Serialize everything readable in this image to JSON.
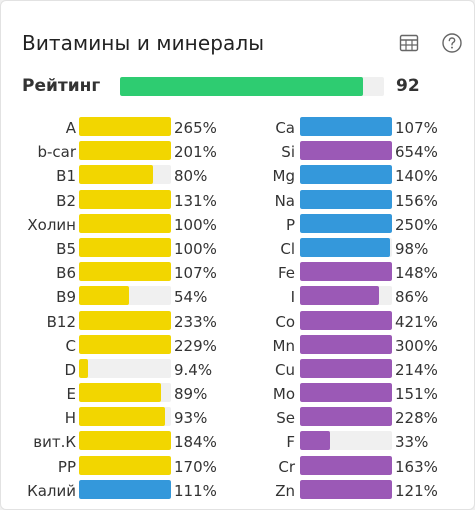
{
  "header": {
    "title": "Витамины и минералы",
    "table_icon": "table-icon",
    "help_icon": "question-circle-icon"
  },
  "rating": {
    "label": "Рейтинг",
    "value": "92",
    "fill_percent": 92,
    "color": "#2ecc71"
  },
  "colors": {
    "vitamin": "#f2d600",
    "mineral_blue": "#3498db",
    "mineral_purple": "#9b59b6",
    "track": "#f0f0f0"
  },
  "left_items": [
    {
      "label": "A",
      "value": "265%",
      "fill": 100,
      "color": "vitamin"
    },
    {
      "label": "b-car",
      "value": "201%",
      "fill": 100,
      "color": "vitamin"
    },
    {
      "label": "B1",
      "value": "80%",
      "fill": 80,
      "color": "vitamin"
    },
    {
      "label": "B2",
      "value": "131%",
      "fill": 100,
      "color": "vitamin"
    },
    {
      "label": "Холин",
      "value": "100%",
      "fill": 100,
      "color": "vitamin"
    },
    {
      "label": "B5",
      "value": "100%",
      "fill": 100,
      "color": "vitamin"
    },
    {
      "label": "B6",
      "value": "107%",
      "fill": 100,
      "color": "vitamin"
    },
    {
      "label": "B9",
      "value": "54%",
      "fill": 54,
      "color": "vitamin"
    },
    {
      "label": "B12",
      "value": "233%",
      "fill": 100,
      "color": "vitamin"
    },
    {
      "label": "C",
      "value": "229%",
      "fill": 100,
      "color": "vitamin"
    },
    {
      "label": "D",
      "value": "9.4%",
      "fill": 9.4,
      "color": "vitamin"
    },
    {
      "label": "E",
      "value": "89%",
      "fill": 89,
      "color": "vitamin"
    },
    {
      "label": "H",
      "value": "93%",
      "fill": 93,
      "color": "vitamin"
    },
    {
      "label": "вит.К",
      "value": "184%",
      "fill": 100,
      "color": "vitamin"
    },
    {
      "label": "PP",
      "value": "170%",
      "fill": 100,
      "color": "vitamin"
    },
    {
      "label": "Калий",
      "value": "111%",
      "fill": 100,
      "color": "mineral_blue"
    }
  ],
  "right_items": [
    {
      "label": "Ca",
      "value": "107%",
      "fill": 100,
      "color": "mineral_blue"
    },
    {
      "label": "Si",
      "value": "654%",
      "fill": 100,
      "color": "mineral_purple"
    },
    {
      "label": "Mg",
      "value": "140%",
      "fill": 100,
      "color": "mineral_blue"
    },
    {
      "label": "Na",
      "value": "156%",
      "fill": 100,
      "color": "mineral_blue"
    },
    {
      "label": "P",
      "value": "250%",
      "fill": 100,
      "color": "mineral_blue"
    },
    {
      "label": "Cl",
      "value": "98%",
      "fill": 98,
      "color": "mineral_blue"
    },
    {
      "label": "Fe",
      "value": "148%",
      "fill": 100,
      "color": "mineral_purple"
    },
    {
      "label": "I",
      "value": "86%",
      "fill": 86,
      "color": "mineral_purple"
    },
    {
      "label": "Co",
      "value": "421%",
      "fill": 100,
      "color": "mineral_purple"
    },
    {
      "label": "Mn",
      "value": "300%",
      "fill": 100,
      "color": "mineral_purple"
    },
    {
      "label": "Cu",
      "value": "214%",
      "fill": 100,
      "color": "mineral_purple"
    },
    {
      "label": "Mo",
      "value": "151%",
      "fill": 100,
      "color": "mineral_purple"
    },
    {
      "label": "Se",
      "value": "228%",
      "fill": 100,
      "color": "mineral_purple"
    },
    {
      "label": "F",
      "value": "33%",
      "fill": 33,
      "color": "mineral_purple"
    },
    {
      "label": "Cr",
      "value": "163%",
      "fill": 100,
      "color": "mineral_purple"
    },
    {
      "label": "Zn",
      "value": "121%",
      "fill": 100,
      "color": "mineral_purple"
    }
  ]
}
